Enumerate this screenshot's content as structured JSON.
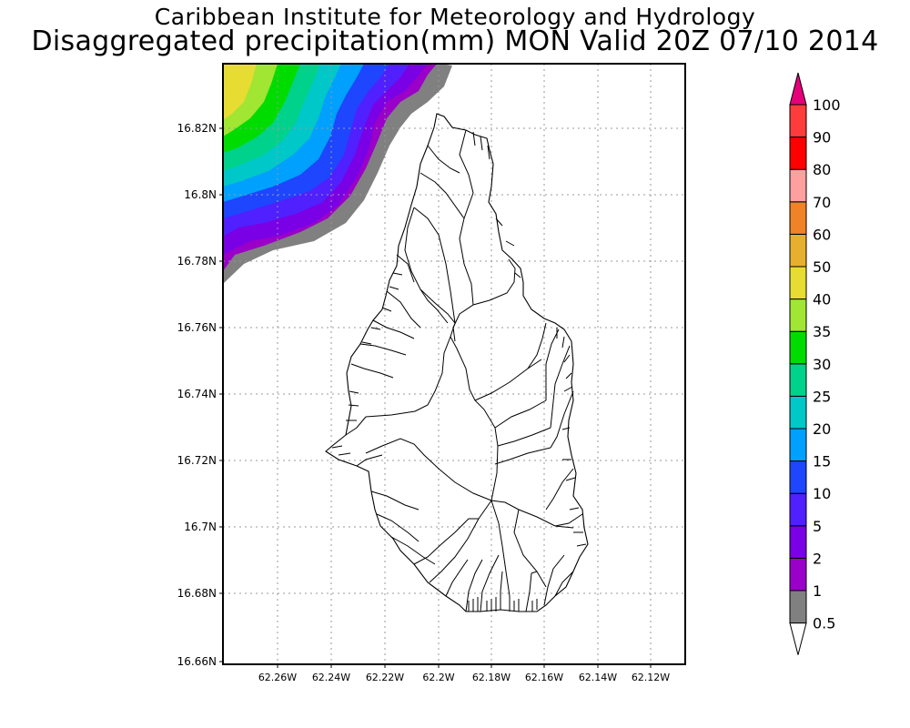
{
  "title": "Caribbean Institute for Meteorology and Hydrology",
  "subtitle": "Disaggregated precipitation(mm) MON Valid 20Z 07/10 2014",
  "map": {
    "lat_labels": [
      "16.82N",
      "16.8N",
      "16.78N",
      "16.76N",
      "16.74N",
      "16.72N",
      "16.7N",
      "16.68N",
      "16.66N"
    ],
    "lon_labels": [
      "62.26W",
      "62.24W",
      "62.22W",
      "62.2W",
      "62.18W",
      "62.16W",
      "62.14W",
      "62.12W"
    ],
    "grid": "dotted",
    "precip_contours_location": "northwest corner, offshore"
  },
  "legend": {
    "colorbar": [
      {
        "label": "0.5",
        "color": "#ffffff"
      },
      {
        "label": "1",
        "color": "#808080"
      },
      {
        "label": "2",
        "color": "#9a00c8"
      },
      {
        "label": "5",
        "color": "#7a00e6"
      },
      {
        "label": "10",
        "color": "#5020ff"
      },
      {
        "label": "15",
        "color": "#1e46ff"
      },
      {
        "label": "20",
        "color": "#00a0ff"
      },
      {
        "label": "25",
        "color": "#00c8c8"
      },
      {
        "label": "30",
        "color": "#00d28c"
      },
      {
        "label": "35",
        "color": "#00dc00"
      },
      {
        "label": "40",
        "color": "#a0e632"
      },
      {
        "label": "50",
        "color": "#e6dc32"
      },
      {
        "label": "60",
        "color": "#e6af2d"
      },
      {
        "label": "70",
        "color": "#f08228"
      },
      {
        "label": "80",
        "color": "#ffa0a0"
      },
      {
        "label": "90",
        "color": "#ff0000"
      },
      {
        "label": "100",
        "color": "#ff3c3c"
      }
    ],
    "top_arrow_color": "#e6007a"
  }
}
